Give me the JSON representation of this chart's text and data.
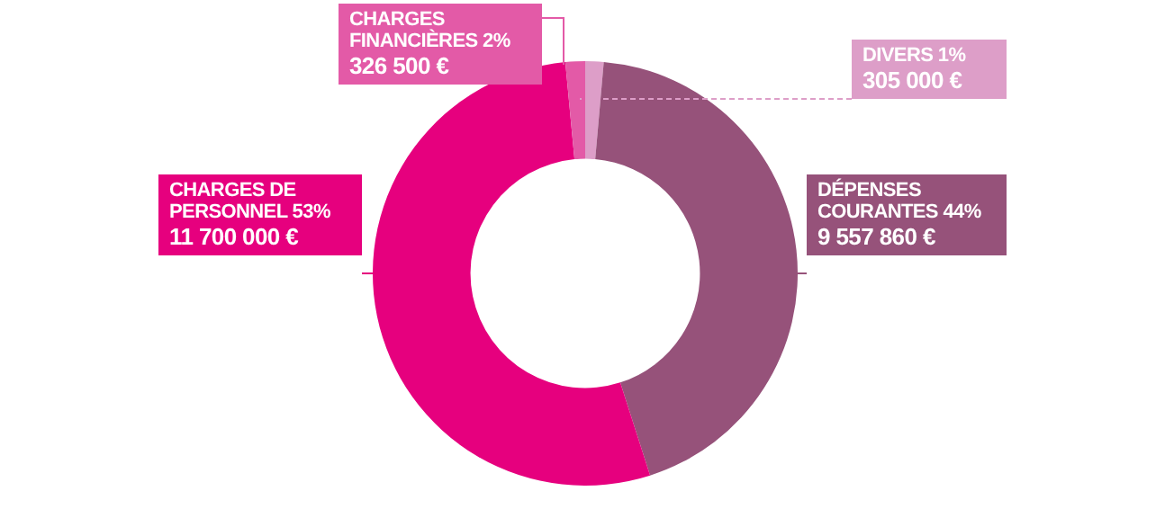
{
  "chart_data": {
    "type": "donut",
    "categories": [
      "DIVERS 1%",
      "DÉPENSES COURANTES 44%",
      "CHARGES DE PERSONNEL 53%",
      "CHARGES FINANCIÈRES 2%"
    ],
    "values": [
      305000,
      9557860,
      11700000,
      326500
    ],
    "value_labels": [
      "305 000 €",
      "9 557 860 €",
      "11 700 000 €",
      "326 500 €"
    ],
    "colors": [
      "#dd9ec8",
      "#96527a",
      "#e6007e",
      "#e35aa7"
    ]
  }
}
